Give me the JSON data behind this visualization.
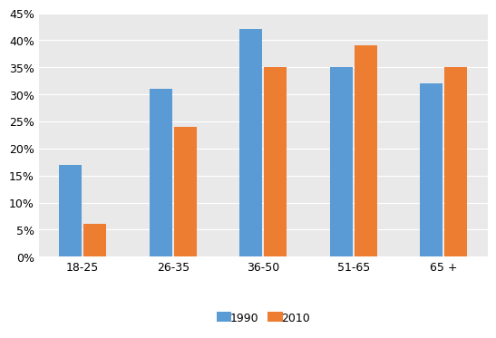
{
  "categories": [
    "18-25",
    "26-35",
    "36-50",
    "51-65",
    "65 +"
  ],
  "values_1990": [
    0.17,
    0.31,
    0.42,
    0.35,
    0.32
  ],
  "values_2010": [
    0.06,
    0.24,
    0.35,
    0.39,
    0.35
  ],
  "color_1990": "#5B9BD5",
  "color_2010": "#ED7D31",
  "legend_labels": [
    "1990",
    "2010"
  ],
  "ylim": [
    0,
    0.45
  ],
  "yticks": [
    0.0,
    0.05,
    0.1,
    0.15,
    0.2,
    0.25,
    0.3,
    0.35,
    0.4,
    0.45
  ],
  "plot_bg_color": "#E9E9E9",
  "fig_bg_color": "#FFFFFF",
  "bar_width": 0.25,
  "grid_color": "#FFFFFF",
  "grid_linewidth": 0.8,
  "tick_fontsize": 9,
  "legend_fontsize": 9
}
